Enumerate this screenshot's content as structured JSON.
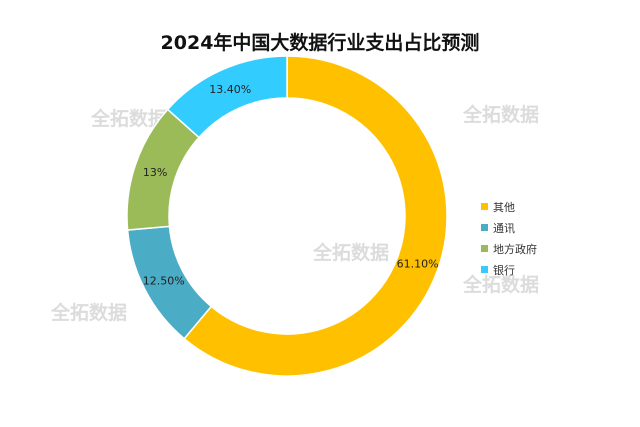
{
  "watermark": "全拓数据",
  "chart_data": {
    "type": "pie",
    "donut": true,
    "title": "2024年中国大数据行业支出占比预测",
    "legend_position": "right",
    "slices": [
      {
        "label": "其他",
        "value": 61.1,
        "value_label": "61.10%",
        "color": "#FFC000"
      },
      {
        "label": "通讯",
        "value": 12.5,
        "value_label": "12.50%",
        "color": "#4BACC6"
      },
      {
        "label": "地方政府",
        "value": 13.0,
        "value_label": "13%",
        "color": "#9BBB59"
      },
      {
        "label": "银行",
        "value": 13.4,
        "value_label": "13.40%",
        "color": "#33CCFF"
      }
    ]
  }
}
